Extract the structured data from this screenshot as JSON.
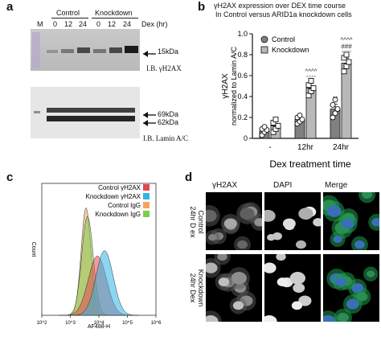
{
  "panel_a": {
    "letter": "a",
    "lane_marker": "M",
    "group_control": "Control",
    "group_knockdown": "Knockdown",
    "lanes": [
      "0",
      "12",
      "24",
      "0",
      "12",
      "24"
    ],
    "dex_label": "Dex (hr)",
    "band_15": "15kDa",
    "ib_h2ax": "I.B. γH2AX",
    "band_69": "69kDa",
    "band_62": "62kDa",
    "ib_lamin": "I.B. Lamin A/C"
  },
  "panel_b": {
    "letter": "b",
    "title_line1": "γH2AX  expression over DEX time course",
    "title_line2": "In Control versus ARID1a knockdown cells",
    "chart_data": {
      "type": "bar",
      "categories": [
        "-",
        "12hr",
        "24hr"
      ],
      "xlabel": "Dex treatment time",
      "ylabel": "γH2AX\nnormalized to Lamin A/C",
      "ylim": [
        0,
        1.0
      ],
      "yticks": [
        "0",
        "0.2",
        "0.4",
        "0.6",
        "0.8",
        "1.0"
      ],
      "legend": "top-left",
      "series": [
        {
          "name": "Control",
          "color": "#808080",
          "values": [
            0.07,
            0.18,
            0.28
          ],
          "points": [
            [
              0.03,
              0.06,
              0.08,
              0.09,
              0.11
            ],
            [
              0.14,
              0.16,
              0.18,
              0.2,
              0.22
            ],
            [
              0.2,
              0.24,
              0.28,
              0.32,
              0.37
            ]
          ],
          "marker": "circle"
        },
        {
          "name": "Knockdown",
          "color": "#b8b8b8",
          "values": [
            0.12,
            0.48,
            0.72
          ],
          "points": [
            [
              0.06,
              0.09,
              0.12,
              0.15,
              0.18
            ],
            [
              0.41,
              0.45,
              0.48,
              0.51,
              0.55
            ],
            [
              0.64,
              0.69,
              0.73,
              0.77,
              0.8
            ]
          ],
          "marker": "square"
        }
      ],
      "annotations": [
        {
          "category": "12hr",
          "series": "Knockdown",
          "lines": [
            "^^^^",
            "****"
          ],
          "colors": [
            "#222222",
            "#9a9a9a"
          ]
        },
        {
          "category": "24hr",
          "series": "Control",
          "lines": [
            "**"
          ],
          "colors": [
            "#222222"
          ]
        },
        {
          "category": "24hr",
          "series": "Knockdown",
          "lines": [
            "^^^^",
            "###",
            "****"
          ],
          "colors": [
            "#222222",
            "#222222",
            "#9a9a9a"
          ]
        }
      ]
    }
  },
  "panel_c": {
    "letter": "c",
    "chart_data": {
      "type": "area",
      "xlabel": "AF488-H",
      "ylabel": "Count",
      "xticks": [
        "10^2",
        "10^3",
        "10^4",
        "10^5",
        "10^6"
      ],
      "legend": "top-right",
      "series": [
        {
          "name": "Control γH2AX",
          "color": "#e8474f",
          "peak_x": 3.95,
          "peak_y": 0.55
        },
        {
          "name": "Knockdown γH2AX",
          "color": "#2fb4e6",
          "peak_x": 4.2,
          "peak_y": 0.6
        },
        {
          "name": "Control IgG",
          "color": "#f4a460",
          "peak_x": 3.55,
          "peak_y": 1.0
        },
        {
          "name": "Knockdown IgG",
          "color": "#7ccd4a",
          "peak_x": 3.6,
          "peak_y": 0.92
        }
      ]
    }
  },
  "panel_d": {
    "letter": "d",
    "col_h2ax": "γH2AX",
    "col_dapi": "DAPI",
    "col_merge": "Merge",
    "row1_line1": "Control",
    "row1_line2": "24hr D ex",
    "row2_line1": "Knockdown",
    "row2_line2": "24hr Dex"
  }
}
